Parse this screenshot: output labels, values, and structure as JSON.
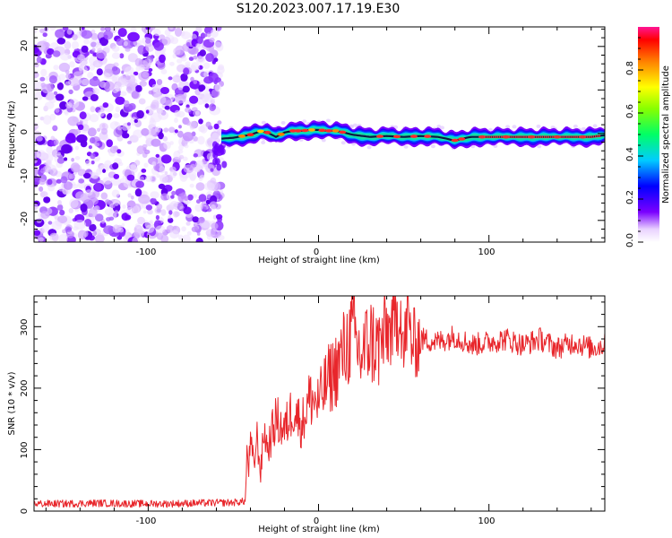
{
  "figure_title": "S120.2023.007.17.19.E30",
  "colors": {
    "snr_line": "#e8262b",
    "axis": "#000000",
    "background": "#ffffff"
  },
  "chart_data": [
    {
      "type": "heatmap",
      "title": "",
      "xlabel": "Height of straight line (km)",
      "ylabel": "Frequency (Hz)",
      "xlim": [
        -167,
        168
      ],
      "ylim": [
        -25,
        24.5
      ],
      "xticks": [
        "-100",
        "0",
        "100"
      ],
      "yticks": [
        "20",
        "10",
        "0",
        "-10",
        "-20"
      ],
      "noise_region_x": [
        -167,
        -57
      ],
      "ridge": {
        "x": [
          -57,
          -50,
          -40,
          -34,
          -30,
          -25,
          -20,
          -15,
          -10,
          -5,
          0,
          5,
          10,
          15,
          20,
          30,
          40,
          50,
          60,
          70,
          75,
          78,
          80,
          85,
          88,
          90,
          100,
          120,
          140,
          160,
          168
        ],
        "frequency_hz": [
          -1.2,
          -1.0,
          -0.3,
          0.5,
          0.2,
          -0.8,
          0.2,
          0.6,
          0.6,
          0.8,
          0.8,
          0.6,
          0.6,
          0.2,
          -0.3,
          -0.8,
          -0.6,
          -0.8,
          -0.6,
          -0.8,
          -1.2,
          -1.5,
          -1.6,
          -1.2,
          -0.9,
          -0.8,
          -0.8,
          -0.8,
          -0.8,
          -0.8,
          -0.4
        ]
      },
      "colorbar": {
        "label": "Normalized spectral amplitude",
        "range": [
          0,
          1
        ],
        "ticks": [
          "0.0",
          "0.2",
          "0.4",
          "0.6",
          "0.8"
        ]
      }
    },
    {
      "type": "line",
      "title": "",
      "xlabel": "Height of straight line (km)",
      "ylabel": "SNR (10 * v/v)",
      "xlim": [
        -167,
        168
      ],
      "ylim": [
        0,
        350
      ],
      "xticks": [
        "-100",
        "0",
        "100"
      ],
      "yticks": [
        "300",
        "200",
        "100",
        "0"
      ],
      "series": [
        {
          "x": [
            -167,
            -150,
            -130,
            -110,
            -90,
            -70,
            -50,
            -43,
            -42,
            -41,
            -40,
            -38,
            -36,
            -34,
            -32,
            -30,
            -25,
            -20,
            -15,
            -10,
            -5,
            0,
            5,
            10,
            15,
            20,
            25,
            30,
            35,
            40,
            45,
            48,
            50,
            52,
            55,
            60,
            70,
            80,
            90,
            100,
            110,
            120,
            130,
            140,
            150,
            160,
            168
          ],
          "values": [
            12,
            12,
            13,
            12,
            12,
            13,
            14,
            16,
            95,
            70,
            110,
            75,
            120,
            60,
            135,
            100,
            150,
            130,
            170,
            140,
            185,
            175,
            210,
            230,
            260,
            290,
            250,
            280,
            265,
            290,
            300,
            340,
            250,
            320,
            270,
            280,
            275,
            285,
            270,
            275,
            280,
            270,
            280,
            265,
            275,
            265,
            270
          ]
        }
      ]
    }
  ]
}
